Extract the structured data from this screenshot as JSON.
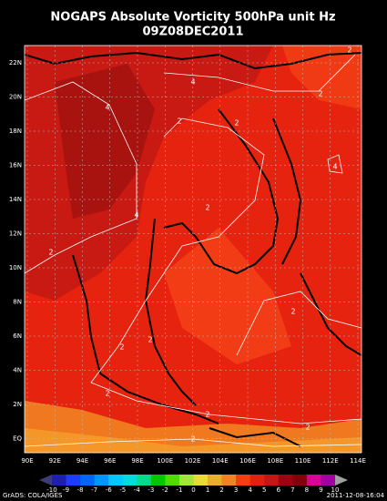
{
  "title": "NOGAPS Absolute Vorticity 500hPa unit Hz",
  "subtitle": "09Z08DEC2011",
  "lat_labels": [
    "22N",
    "20N",
    "18N",
    "16N",
    "14N",
    "12N",
    "10N",
    "8N",
    "6N",
    "4N",
    "2N",
    "EQ"
  ],
  "lon_labels": [
    "90E",
    "92E",
    "94E",
    "96E",
    "98E",
    "100E",
    "102E",
    "104E",
    "106E",
    "108E",
    "110E",
    "112E",
    "114E"
  ],
  "contour_labels": [
    "2",
    "4",
    "4",
    "2",
    "2",
    "2",
    "4",
    "4",
    "2",
    "2",
    "2",
    "2",
    "2",
    "2",
    "2",
    "2",
    "2"
  ],
  "colorbar_labels": [
    "-10",
    "-9",
    "-8",
    "-7",
    "-6",
    "-5",
    "-4",
    "-3",
    "-2",
    "-1",
    "0",
    "1",
    "2",
    "3",
    "4",
    "5",
    "6",
    "7",
    "8",
    "9",
    "10"
  ],
  "footer_left": "GrADS: COLA/IGES",
  "footer_right": "2011-12-08-16:04"
}
